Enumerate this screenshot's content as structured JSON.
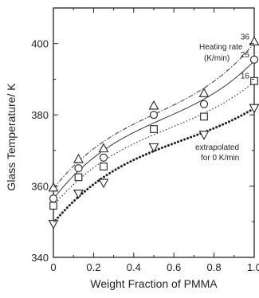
{
  "chart_data": {
    "type": "scatter",
    "title": "",
    "xlabel": "Weight Fraction of PMMA",
    "ylabel": "Glass Temperature/ K",
    "xlim": [
      0,
      1.0
    ],
    "ylim": [
      340,
      410
    ],
    "xticks": [
      0,
      0.2,
      0.4,
      0.6,
      0.8,
      1.0
    ],
    "xtick_labels": [
      "0",
      "0.2",
      "0.4",
      "0.6",
      "0.8",
      "1.0"
    ],
    "yticks": [
      340,
      360,
      380,
      400
    ],
    "ytick_labels": [
      "340",
      "360",
      "380",
      "400"
    ],
    "grid": false,
    "legend": "none",
    "annotations": {
      "heating_rate": "Heating rate",
      "heating_rate_unit": "(K/min)",
      "extrapolated_line1": "extrapolated",
      "extrapolated_line2": "for 0 K/min"
    },
    "series": [
      {
        "label": "36",
        "marker": "triangle-up",
        "line_style": "dash-dot",
        "x": [
          0,
          0.125,
          0.25,
          0.5,
          0.75,
          1.0
        ],
        "y": [
          359.5,
          367.5,
          370.5,
          382.5,
          386.0,
          400.5
        ]
      },
      {
        "label": "25",
        "marker": "circle",
        "line_style": "solid",
        "x": [
          0,
          0.125,
          0.25,
          0.5,
          0.75,
          1.0
        ],
        "y": [
          356.5,
          365.0,
          368.0,
          380.0,
          383.0,
          395.5
        ]
      },
      {
        "label": "16",
        "marker": "square",
        "line_style": "dotted",
        "x": [
          0,
          0.125,
          0.25,
          0.5,
          0.75,
          1.0
        ],
        "y": [
          354.5,
          362.5,
          365.5,
          376.0,
          379.5,
          389.5
        ]
      },
      {
        "label": "",
        "marker": "triangle-down",
        "line_style": "bold-dotted",
        "x": [
          0,
          0.125,
          0.25,
          0.5,
          0.75,
          1.0
        ],
        "y": [
          349.5,
          358.0,
          361.0,
          371.0,
          374.5,
          382.0
        ]
      }
    ]
  }
}
